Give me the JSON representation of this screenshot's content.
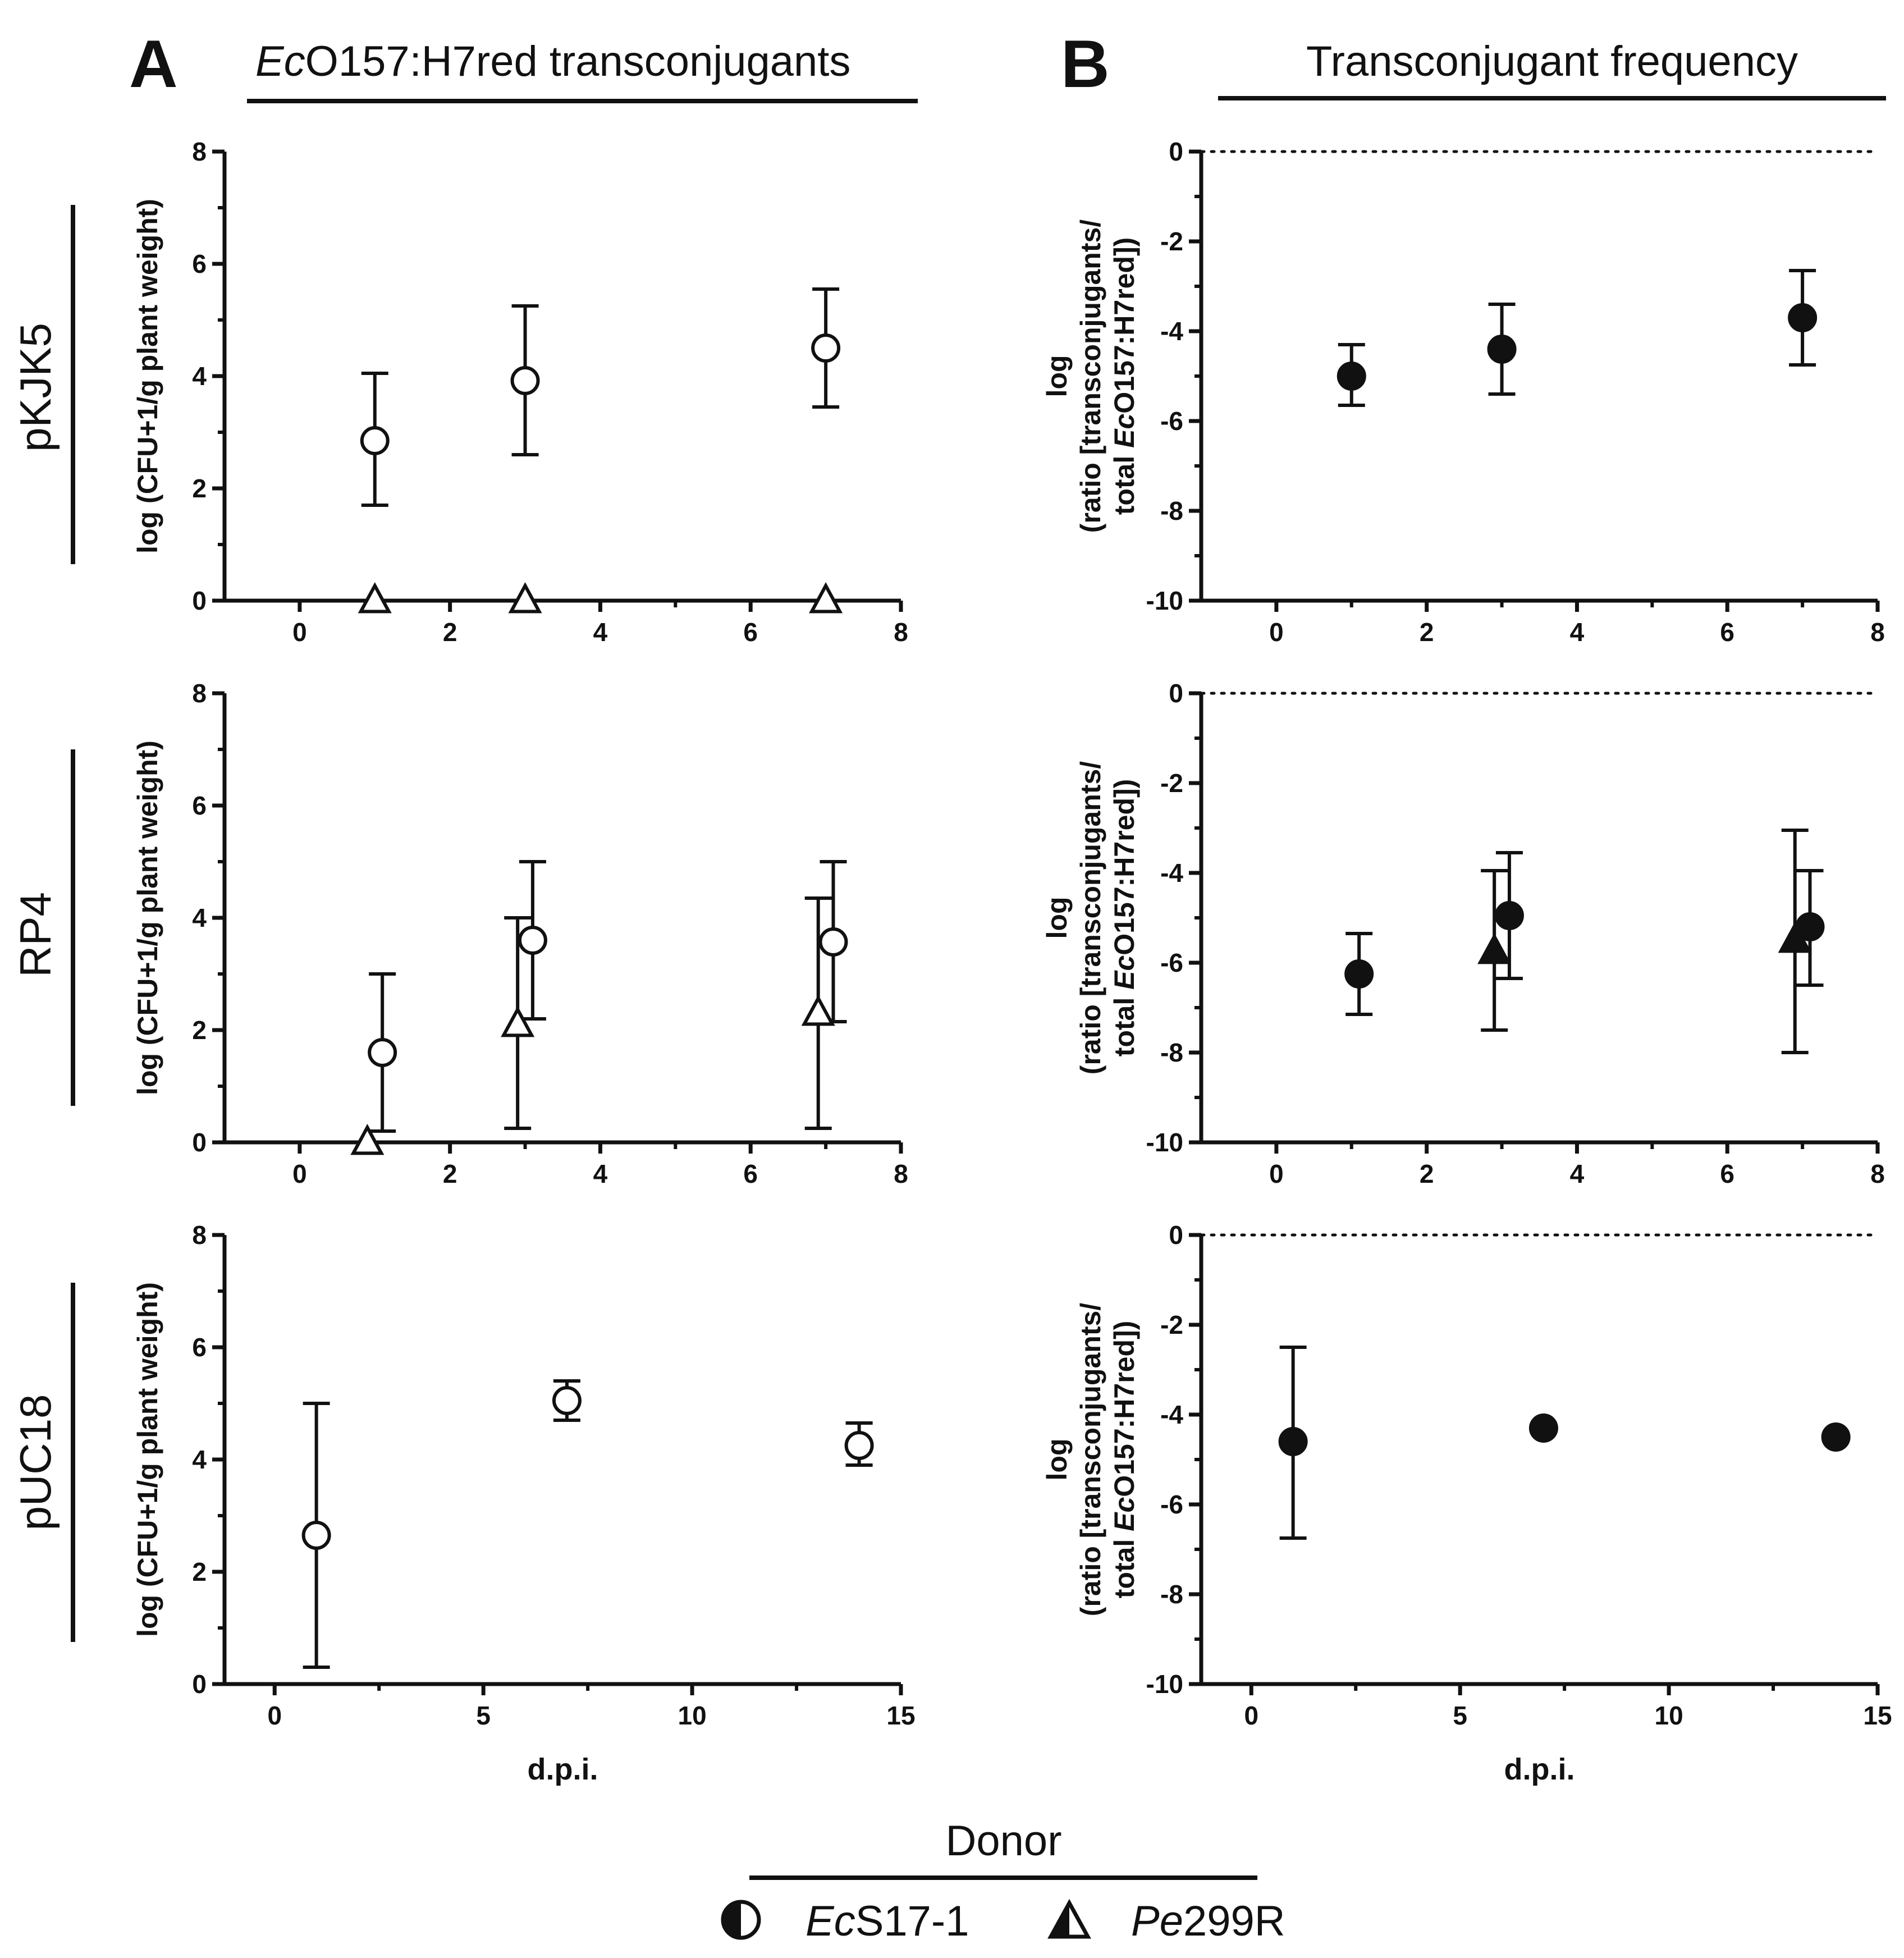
{
  "figure": {
    "panel_a_letter": "A",
    "panel_a_title_italic": "Ec",
    "panel_a_title_rest": "O157:H7red transconjugants",
    "panel_b_letter": "B",
    "panel_b_title": "Transconjugant frequency",
    "row_labels": [
      "pKJK5",
      "RP4",
      "pUC18"
    ],
    "legend": {
      "title": "Donor",
      "items": [
        {
          "italic": "Ec",
          "rest": "S17-1",
          "marker": "circle-half"
        },
        {
          "italic": "Pe",
          "rest": "299R",
          "marker": "triangle"
        }
      ]
    }
  },
  "chart_data": [
    {
      "id": "A-pKJK5",
      "type": "scatter",
      "panel": "A",
      "row": "pKJK5",
      "title": "",
      "xlabel": "",
      "ylabel": "log (CFU+1/g plant weight)",
      "xlim": [
        -1,
        8
      ],
      "ylim": [
        0,
        8
      ],
      "xticks": [
        0,
        2,
        4,
        6,
        8
      ],
      "yticks": [
        0,
        2,
        4,
        6,
        8
      ],
      "ref_line_y": null,
      "series": [
        {
          "name": "EcS17-1",
          "marker": "circle",
          "fill": "#ffffff",
          "points": [
            {
              "x": 1,
              "y": 2.85,
              "lo": 1.7,
              "hi": 4.05
            },
            {
              "x": 3,
              "y": 3.92,
              "lo": 2.6,
              "hi": 5.25
            },
            {
              "x": 7,
              "y": 4.5,
              "lo": 3.45,
              "hi": 5.55
            }
          ]
        },
        {
          "name": "Pe299R",
          "marker": "triangle",
          "fill": "#ffffff",
          "points": [
            {
              "x": 1,
              "y": 0
            },
            {
              "x": 3,
              "y": 0
            },
            {
              "x": 7,
              "y": 0
            }
          ]
        }
      ]
    },
    {
      "id": "B-pKJK5",
      "type": "scatter",
      "panel": "B",
      "row": "pKJK5",
      "title": "",
      "xlabel": "",
      "ylabel": "log (ratio [transconjugants/ total EcO157:H7red])",
      "xlim": [
        -1,
        8
      ],
      "ylim": [
        -10,
        0
      ],
      "xticks": [
        0,
        2,
        4,
        6,
        8
      ],
      "yticks": [
        0,
        -2,
        -4,
        -6,
        -8,
        -10
      ],
      "ref_line_y": 0,
      "series": [
        {
          "name": "EcS17-1",
          "marker": "circle",
          "fill": "#111111",
          "points": [
            {
              "x": 1,
              "y": -5.0,
              "lo": -5.65,
              "hi": -4.3
            },
            {
              "x": 3,
              "y": -4.4,
              "lo": -5.4,
              "hi": -3.4
            },
            {
              "x": 7,
              "y": -3.7,
              "lo": -4.75,
              "hi": -2.65
            }
          ]
        }
      ]
    },
    {
      "id": "A-RP4",
      "type": "scatter",
      "panel": "A",
      "row": "RP4",
      "title": "",
      "xlabel": "",
      "ylabel": "log (CFU+1/g plant weight)",
      "xlim": [
        -1,
        8
      ],
      "ylim": [
        0,
        8
      ],
      "xticks": [
        0,
        2,
        4,
        6,
        8
      ],
      "yticks": [
        0,
        2,
        4,
        6,
        8
      ],
      "ref_line_y": null,
      "series": [
        {
          "name": "EcS17-1",
          "marker": "circle",
          "fill": "#ffffff",
          "points": [
            {
              "x": 1.1,
              "y": 1.6,
              "lo": 0.2,
              "hi": 3.0
            },
            {
              "x": 3.1,
              "y": 3.6,
              "lo": 2.2,
              "hi": 5.0
            },
            {
              "x": 7.1,
              "y": 3.57,
              "lo": 2.15,
              "hi": 5.0
            }
          ]
        },
        {
          "name": "Pe299R",
          "marker": "triangle",
          "fill": "#ffffff",
          "points": [
            {
              "x": 0.9,
              "y": 0,
              "lo": null,
              "hi": null
            },
            {
              "x": 2.9,
              "y": 2.1,
              "lo": 0.25,
              "hi": 4.0
            },
            {
              "x": 6.9,
              "y": 2.3,
              "lo": 0.25,
              "hi": 4.35
            }
          ]
        }
      ]
    },
    {
      "id": "B-RP4",
      "type": "scatter",
      "panel": "B",
      "row": "RP4",
      "title": "",
      "xlabel": "",
      "ylabel": "log (ratio [transconjugants/ total EcO157:H7red])",
      "xlim": [
        -1,
        8
      ],
      "ylim": [
        -10,
        0
      ],
      "xticks": [
        0,
        2,
        4,
        6,
        8
      ],
      "yticks": [
        0,
        -2,
        -4,
        -6,
        -8,
        -10
      ],
      "ref_line_y": 0,
      "series": [
        {
          "name": "EcS17-1",
          "marker": "circle",
          "fill": "#111111",
          "points": [
            {
              "x": 1.1,
              "y": -6.25,
              "lo": -7.15,
              "hi": -5.35
            },
            {
              "x": 3.1,
              "y": -4.95,
              "lo": -6.35,
              "hi": -3.55
            },
            {
              "x": 7.1,
              "y": -5.2,
              "lo": -6.5,
              "hi": -3.95
            }
          ]
        },
        {
          "name": "Pe299R",
          "marker": "triangle",
          "fill": "#111111",
          "points": [
            {
              "x": 2.9,
              "y": -5.75,
              "lo": -7.5,
              "hi": -3.95
            },
            {
              "x": 6.9,
              "y": -5.5,
              "lo": -8.0,
              "hi": -3.05
            }
          ]
        }
      ]
    },
    {
      "id": "A-pUC18",
      "type": "scatter",
      "panel": "A",
      "row": "pUC18",
      "title": "",
      "xlabel": "d.p.i.",
      "ylabel": "log (CFU+1/g plant weight)",
      "xlim": [
        -1.2,
        15
      ],
      "ylim": [
        0,
        8
      ],
      "xticks": [
        0,
        5,
        10,
        15
      ],
      "yticks": [
        0,
        2,
        4,
        6,
        8
      ],
      "ref_line_y": null,
      "series": [
        {
          "name": "EcS17-1",
          "marker": "circle",
          "fill": "#ffffff",
          "points": [
            {
              "x": 1,
              "y": 2.65,
              "lo": 0.3,
              "hi": 5.0
            },
            {
              "x": 7,
              "y": 5.05,
              "lo": 4.7,
              "hi": 5.4
            },
            {
              "x": 14,
              "y": 4.25,
              "lo": 3.9,
              "hi": 4.65
            }
          ]
        }
      ]
    },
    {
      "id": "B-pUC18",
      "type": "scatter",
      "panel": "B",
      "row": "pUC18",
      "title": "",
      "xlabel": "d.p.i.",
      "ylabel": "log (ratio [transconjugants/ total EcO157:H7red])",
      "xlim": [
        -1.2,
        15
      ],
      "ylim": [
        -10,
        0
      ],
      "xticks": [
        0,
        5,
        10,
        15
      ],
      "yticks": [
        0,
        -2,
        -4,
        -6,
        -8,
        -10
      ],
      "ref_line_y": 0,
      "series": [
        {
          "name": "EcS17-1",
          "marker": "circle",
          "fill": "#111111",
          "points": [
            {
              "x": 1,
              "y": -4.6,
              "lo": -6.75,
              "hi": -2.5
            },
            {
              "x": 7,
              "y": -4.3,
              "lo": null,
              "hi": null
            },
            {
              "x": 14,
              "y": -4.5,
              "lo": null,
              "hi": null
            }
          ]
        }
      ]
    }
  ]
}
